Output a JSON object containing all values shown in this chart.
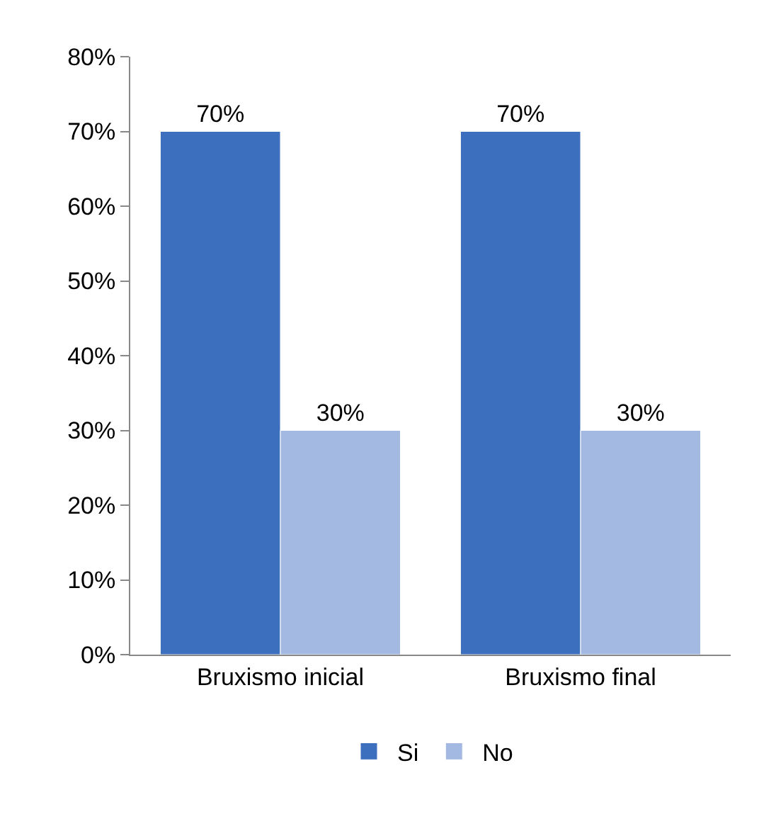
{
  "chart_data": {
    "type": "bar",
    "categories": [
      "Bruxismo inicial",
      "Bruxismo final"
    ],
    "series": [
      {
        "name": "Si",
        "color": "#3c6fbe",
        "values": [
          70,
          70
        ],
        "value_labels": [
          "70%",
          "70%"
        ]
      },
      {
        "name": "No",
        "color": "#a4b9e1",
        "values": [
          30,
          30
        ],
        "value_labels": [
          "30%",
          "30%"
        ]
      }
    ],
    "ylim": [
      0,
      80
    ],
    "yticks": [
      {
        "value": 0,
        "label": "0%"
      },
      {
        "value": 10,
        "label": "10%"
      },
      {
        "value": 20,
        "label": "20%"
      },
      {
        "value": 30,
        "label": "30%"
      },
      {
        "value": 40,
        "label": "40%"
      },
      {
        "value": 50,
        "label": "50%"
      },
      {
        "value": 60,
        "label": "60%"
      },
      {
        "value": 70,
        "label": "70%"
      },
      {
        "value": 80,
        "label": "80%"
      }
    ],
    "grid": false,
    "legend": "bottom"
  }
}
